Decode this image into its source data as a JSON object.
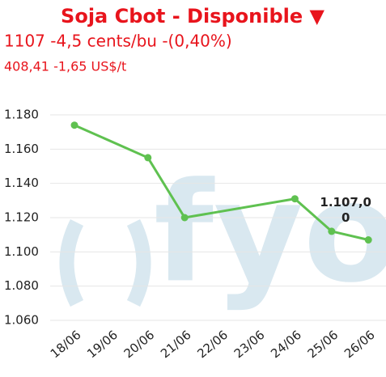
{
  "chart_data": {
    "type": "line",
    "title": "Soja Cbot - Disponible ▼",
    "subtitle": "1107 -4,5 cents/bu -(0,40%)",
    "subtitle2": "408,41 -1,65 US$/t",
    "watermark": "fyo",
    "xticks": [
      "18/06",
      "19/06",
      "20/06",
      "21/06",
      "22/06",
      "23/06",
      "24/06",
      "25/06",
      "26/06"
    ],
    "x": [
      "18/06",
      "20/06",
      "21/06",
      "24/06",
      "25/06",
      "26/06"
    ],
    "series": [
      {
        "color": "#5fc150",
        "values": [
          1174,
          1155,
          1120,
          1131,
          1112,
          1107
        ],
        "value_labels": [
          null,
          null,
          null,
          null,
          null,
          "1.107,00"
        ]
      }
    ],
    "ylim": [
      1060,
      1180
    ],
    "yticks": [
      {
        "value": 1060,
        "label": "1.060"
      },
      {
        "value": 1080,
        "label": "1.080"
      },
      {
        "value": 1100,
        "label": "1.100"
      },
      {
        "value": 1120,
        "label": "1.120"
      },
      {
        "value": 1140,
        "label": "1.140"
      },
      {
        "value": 1160,
        "label": "1.160"
      },
      {
        "value": 1180,
        "label": "1.180"
      }
    ],
    "grid": true
  }
}
